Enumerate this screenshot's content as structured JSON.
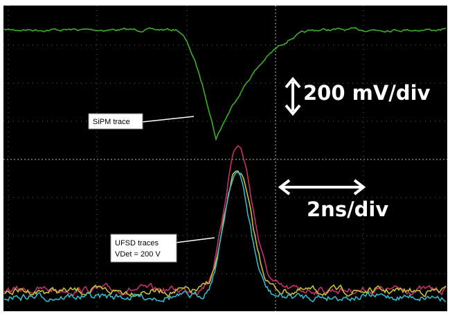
{
  "annotations": {
    "sipm_label": "SiPM trace",
    "vertical_scale": "200 mV/div",
    "horizontal_scale": "2ns/div",
    "ufsd_label_line1": "UFSD traces",
    "ufsd_label_line2": "VDet = 200 V"
  }
}
